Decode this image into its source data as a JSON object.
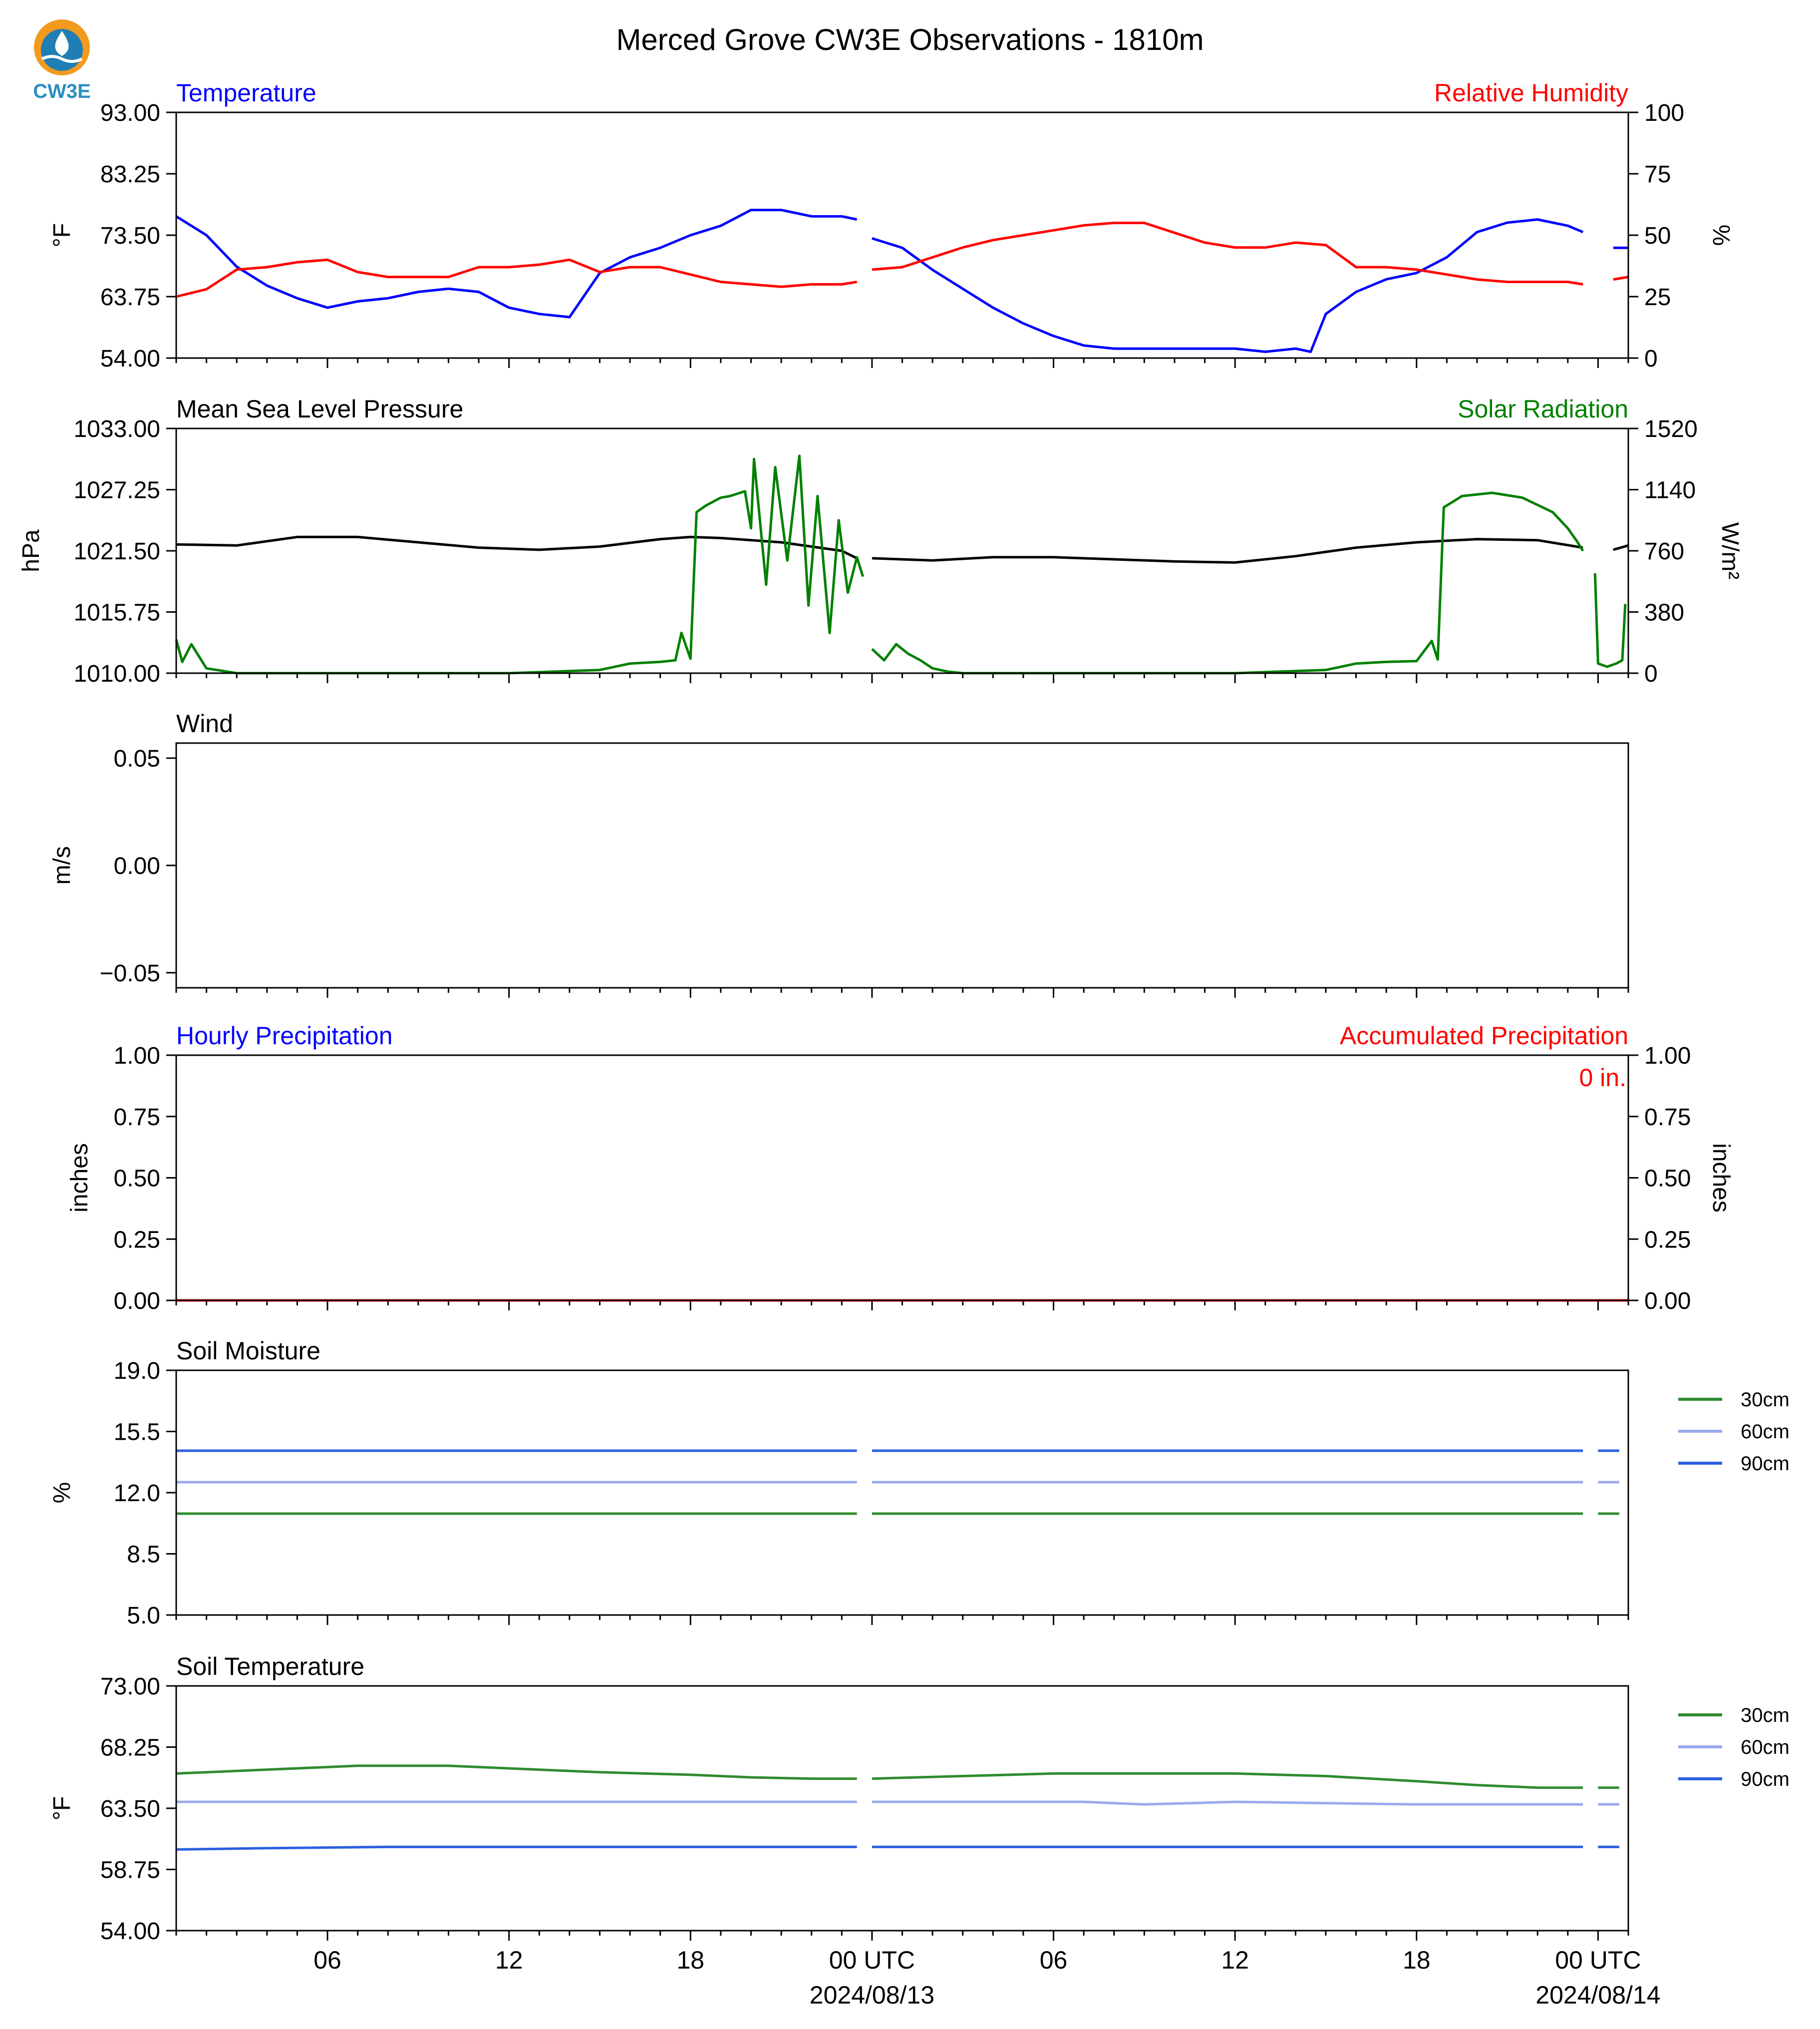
{
  "page": {
    "title": "Merced Grove CW3E Observations - 1810m",
    "logo_text": "CW3E",
    "x_ticks": [
      {
        "hour": 6,
        "label": "06"
      },
      {
        "hour": 12,
        "label": "12"
      },
      {
        "hour": 18,
        "label": "18"
      },
      {
        "hour": 24,
        "label": "00 UTC",
        "date": "2024/08/13"
      },
      {
        "hour": 30,
        "label": "06"
      },
      {
        "hour": 36,
        "label": "12"
      },
      {
        "hour": 42,
        "label": "18"
      },
      {
        "hour": 48,
        "label": "00 UTC",
        "date": "2024/08/14"
      }
    ]
  },
  "colors": {
    "blue": "#0000ff",
    "red": "#ff0000",
    "green": "#008000",
    "black": "#000000",
    "soil30": "#2e8b2e",
    "soil60": "#9aa8ee",
    "soil90": "#2a5fe0"
  },
  "chart_data": [
    {
      "id": "temp_rh",
      "type": "line",
      "title_left": "Temperature",
      "title_right": "Relative Humidity",
      "ylabel_left": "°F",
      "ylabel_right": "%",
      "x_range_hours": [
        1,
        49
      ],
      "ylim_left": [
        54,
        93
      ],
      "ylim_right": [
        0,
        100
      ],
      "yticks_left": [
        "54.00",
        "63.75",
        "73.50",
        "83.25",
        "93.00"
      ],
      "yticks_right": [
        "0",
        "25",
        "50",
        "75",
        "100"
      ],
      "series": [
        {
          "axis": "left",
          "color": "blue",
          "x": [
            1,
            2,
            3,
            4,
            5,
            6,
            7,
            8,
            9,
            10,
            11,
            12,
            13,
            14,
            15,
            16,
            17,
            18,
            19,
            20,
            21,
            22,
            23,
            23.5
          ],
          "y": [
            76.5,
            73.5,
            68.5,
            65.5,
            63.5,
            62,
            63,
            63.5,
            64.5,
            65,
            64.5,
            62,
            61,
            60.5,
            67.5,
            70,
            71.5,
            73.5,
            75,
            77.5,
            77.5,
            76.5,
            76.5,
            76
          ]
        },
        {
          "axis": "left",
          "color": "blue",
          "x": [
            24,
            25,
            26,
            27,
            28,
            29,
            30,
            31,
            32,
            33,
            34,
            35,
            36,
            37,
            38,
            38.5,
            39,
            40,
            41,
            42,
            43,
            44,
            45,
            46,
            47,
            47.5
          ],
          "y": [
            73,
            71.5,
            68,
            65,
            62,
            59.5,
            57.5,
            56,
            55.5,
            55.5,
            55.5,
            55.5,
            55.5,
            55,
            55.5,
            55,
            61,
            64.5,
            66.5,
            67.5,
            70,
            74,
            75.5,
            76,
            75,
            74
          ]
        },
        {
          "axis": "left",
          "color": "blue",
          "x": [
            48.5,
            49
          ],
          "y": [
            71.5,
            71.5
          ]
        },
        {
          "axis": "right",
          "color": "red",
          "x": [
            1,
            2,
            3,
            4,
            5,
            6,
            7,
            8,
            9,
            10,
            11,
            12,
            13,
            14,
            15,
            16,
            17,
            18,
            19,
            20,
            21,
            22,
            23,
            23.5
          ],
          "y": [
            25,
            28,
            36,
            37,
            39,
            40,
            35,
            33,
            33,
            33,
            37,
            37,
            38,
            40,
            35,
            37,
            37,
            34,
            31,
            30,
            29,
            30,
            30,
            31
          ]
        },
        {
          "axis": "right",
          "color": "red",
          "x": [
            24,
            25,
            26,
            27,
            28,
            29,
            30,
            31,
            32,
            33,
            34,
            35,
            36,
            37,
            38,
            39,
            40,
            41,
            42,
            43,
            44,
            45,
            46,
            47,
            47.5
          ],
          "y": [
            36,
            37,
            41,
            45,
            48,
            50,
            52,
            54,
            55,
            55,
            51,
            47,
            45,
            45,
            47,
            46,
            37,
            37,
            36,
            34,
            32,
            31,
            31,
            31,
            30
          ]
        },
        {
          "axis": "right",
          "color": "red",
          "x": [
            48.5,
            49
          ],
          "y": [
            32,
            33
          ]
        }
      ]
    },
    {
      "id": "pressure_solar",
      "type": "line",
      "title_left": "Mean Sea Level Pressure",
      "title_right": "Solar Radiation",
      "ylabel_left": "hPa",
      "ylabel_right": "W/m²",
      "x_range_hours": [
        1,
        49
      ],
      "ylim_left": [
        1010,
        1033
      ],
      "ylim_right": [
        0,
        1520
      ],
      "yticks_left": [
        "1010.00",
        "1015.75",
        "1021.50",
        "1027.25",
        "1033.00"
      ],
      "yticks_right": [
        "0",
        "380",
        "760",
        "1140",
        "1520"
      ],
      "series": [
        {
          "axis": "left",
          "color": "black",
          "x": [
            1,
            3,
            5,
            7,
            9,
            11,
            13,
            15,
            17,
            18,
            19,
            21,
            23,
            23.5
          ],
          "y": [
            1022.1,
            1022.0,
            1022.8,
            1022.8,
            1022.3,
            1021.8,
            1021.6,
            1021.9,
            1022.6,
            1022.8,
            1022.7,
            1022.3,
            1021.5,
            1020.8
          ]
        },
        {
          "axis": "left",
          "color": "black",
          "x": [
            24,
            26,
            28,
            30,
            32,
            34,
            36,
            38,
            40,
            42,
            44,
            46,
            47.5
          ],
          "y": [
            1020.8,
            1020.6,
            1020.9,
            1020.9,
            1020.7,
            1020.5,
            1020.4,
            1021.0,
            1021.8,
            1022.3,
            1022.6,
            1022.5,
            1021.8
          ]
        },
        {
          "axis": "left",
          "color": "black",
          "x": [
            48.5,
            49
          ],
          "y": [
            1021.6,
            1022.0
          ]
        },
        {
          "axis": "right",
          "color": "green",
          "x": [
            1,
            1.2,
            1.5,
            2,
            3,
            6,
            12,
            15,
            16,
            17,
            17.5,
            17.7,
            18,
            18.2,
            18.5,
            19,
            19.3,
            19.8,
            20,
            20.1,
            20.5,
            20.8,
            21.2,
            21.6,
            21.9,
            22.2,
            22.6,
            22.9,
            23.2,
            23.5,
            23.7
          ],
          "y": [
            210,
            70,
            180,
            30,
            0,
            0,
            0,
            20,
            60,
            70,
            80,
            250,
            90,
            1000,
            1040,
            1090,
            1100,
            1130,
            900,
            1330,
            550,
            1280,
            700,
            1350,
            420,
            1100,
            250,
            950,
            500,
            720,
            600
          ]
        },
        {
          "axis": "right",
          "color": "green",
          "x": [
            24,
            24.4,
            24.8,
            25.2,
            25.6,
            26,
            26.5,
            27,
            30,
            36,
            39,
            40,
            41,
            42,
            42.5,
            42.7,
            42.9,
            43.5,
            44.5,
            45.5,
            46.5,
            47,
            47.3,
            47.5
          ],
          "y": [
            150,
            80,
            180,
            120,
            80,
            30,
            10,
            0,
            0,
            0,
            20,
            60,
            70,
            75,
            200,
            85,
            1030,
            1100,
            1120,
            1090,
            1000,
            900,
            820,
            760
          ]
        },
        {
          "axis": "right",
          "color": "green",
          "x": [
            47.9,
            48,
            48.3,
            48.6,
            48.8,
            48.9
          ],
          "y": [
            620,
            60,
            40,
            60,
            80,
            430
          ]
        }
      ]
    },
    {
      "id": "wind",
      "type": "line",
      "title_left": "Wind",
      "ylabel_left": "m/s",
      "x_range_hours": [
        1,
        49
      ],
      "ylim_left": [
        -0.057,
        0.057
      ],
      "yticks": [
        -0.05,
        0.0,
        0.05
      ],
      "yticks_left": [
        "−0.05",
        "0.00",
        "0.05"
      ],
      "series": []
    },
    {
      "id": "precip",
      "type": "line",
      "title_left": "Hourly Precipitation",
      "title_right": "Accumulated Precipitation",
      "annotation": "0 in.",
      "ylabel_left": "inches",
      "ylabel_right": "inches",
      "x_range_hours": [
        1,
        49
      ],
      "ylim_left": [
        0,
        1
      ],
      "ylim_right": [
        0,
        1
      ],
      "yticks_left": [
        "0.00",
        "0.25",
        "0.50",
        "0.75",
        "1.00"
      ],
      "yticks_right": [
        "0.00",
        "0.25",
        "0.50",
        "0.75",
        "1.00"
      ],
      "series": [
        {
          "axis": "left",
          "color": "red",
          "x": [
            1,
            49
          ],
          "y": [
            0,
            0
          ]
        }
      ]
    },
    {
      "id": "soil_moisture",
      "type": "line",
      "title_left": "Soil Moisture",
      "ylabel_left": "%",
      "x_range_hours": [
        1,
        49
      ],
      "ylim_left": [
        5,
        19
      ],
      "yticks_left": [
        "5.0",
        "8.5",
        "12.0",
        "15.5",
        "19.0"
      ],
      "legend": [
        {
          "label": "30cm",
          "color": "soil30"
        },
        {
          "label": "60cm",
          "color": "soil60"
        },
        {
          "label": "90cm",
          "color": "soil90"
        }
      ],
      "series": [
        {
          "name": "30cm",
          "color": "soil30",
          "x": [
            1,
            23.5
          ],
          "y": [
            10.8,
            10.8
          ]
        },
        {
          "name": "30cm",
          "color": "soil30",
          "x": [
            24,
            47.5
          ],
          "y": [
            10.8,
            10.8
          ]
        },
        {
          "name": "30cm",
          "color": "soil30",
          "x": [
            48,
            48.7
          ],
          "y": [
            10.8,
            10.8
          ]
        },
        {
          "name": "60cm",
          "color": "soil60",
          "x": [
            1,
            23.5
          ],
          "y": [
            12.6,
            12.6
          ]
        },
        {
          "name": "60cm",
          "color": "soil60",
          "x": [
            24,
            47.5
          ],
          "y": [
            12.6,
            12.6
          ]
        },
        {
          "name": "60cm",
          "color": "soil60",
          "x": [
            48,
            48.7
          ],
          "y": [
            12.6,
            12.6
          ]
        },
        {
          "name": "90cm",
          "color": "soil90",
          "x": [
            1,
            23.5
          ],
          "y": [
            14.4,
            14.4
          ]
        },
        {
          "name": "90cm",
          "color": "soil90",
          "x": [
            24,
            47.5
          ],
          "y": [
            14.4,
            14.4
          ]
        },
        {
          "name": "90cm",
          "color": "soil90",
          "x": [
            48,
            48.7
          ],
          "y": [
            14.4,
            14.4
          ]
        }
      ]
    },
    {
      "id": "soil_temp",
      "type": "line",
      "title_left": "Soil Temperature",
      "ylabel_left": "°F",
      "x_range_hours": [
        1,
        49
      ],
      "ylim_left": [
        54,
        73
      ],
      "yticks_left": [
        "54.00",
        "58.75",
        "63.50",
        "68.25",
        "73.00"
      ],
      "legend": [
        {
          "label": "30cm",
          "color": "soil30"
        },
        {
          "label": "60cm",
          "color": "soil60"
        },
        {
          "label": "90cm",
          "color": "soil90"
        }
      ],
      "series": [
        {
          "name": "30cm",
          "color": "soil30",
          "x": [
            1,
            4,
            7,
            10,
            12,
            15,
            18,
            20,
            22,
            23.5
          ],
          "y": [
            66.2,
            66.5,
            66.8,
            66.8,
            66.6,
            66.3,
            66.1,
            65.9,
            65.8,
            65.8
          ]
        },
        {
          "name": "30cm",
          "color": "soil30",
          "x": [
            24,
            27,
            30,
            33,
            36,
            39,
            42,
            44,
            46,
            47.5
          ],
          "y": [
            65.8,
            66.0,
            66.2,
            66.2,
            66.2,
            66.0,
            65.6,
            65.3,
            65.1,
            65.1
          ]
        },
        {
          "name": "30cm",
          "color": "soil30",
          "x": [
            48,
            48.7
          ],
          "y": [
            65.1,
            65.1
          ]
        },
        {
          "name": "60cm",
          "color": "soil60",
          "x": [
            1,
            23.5
          ],
          "y": [
            64.0,
            64.0
          ]
        },
        {
          "name": "60cm",
          "color": "soil60",
          "x": [
            24,
            31,
            33,
            36,
            42,
            47.5
          ],
          "y": [
            64.0,
            64.0,
            63.8,
            64.0,
            63.8,
            63.8
          ]
        },
        {
          "name": "60cm",
          "color": "soil60",
          "x": [
            48,
            48.7
          ],
          "y": [
            63.8,
            63.8
          ]
        },
        {
          "name": "90cm",
          "color": "soil90",
          "x": [
            1,
            4,
            8,
            12,
            16,
            20,
            23.5
          ],
          "y": [
            60.3,
            60.4,
            60.5,
            60.5,
            60.5,
            60.5,
            60.5
          ]
        },
        {
          "name": "90cm",
          "color": "soil90",
          "x": [
            24,
            30,
            36,
            42,
            47.5
          ],
          "y": [
            60.5,
            60.5,
            60.5,
            60.5,
            60.5
          ]
        },
        {
          "name": "90cm",
          "color": "soil90",
          "x": [
            48,
            48.7
          ],
          "y": [
            60.5,
            60.5
          ]
        }
      ]
    }
  ]
}
